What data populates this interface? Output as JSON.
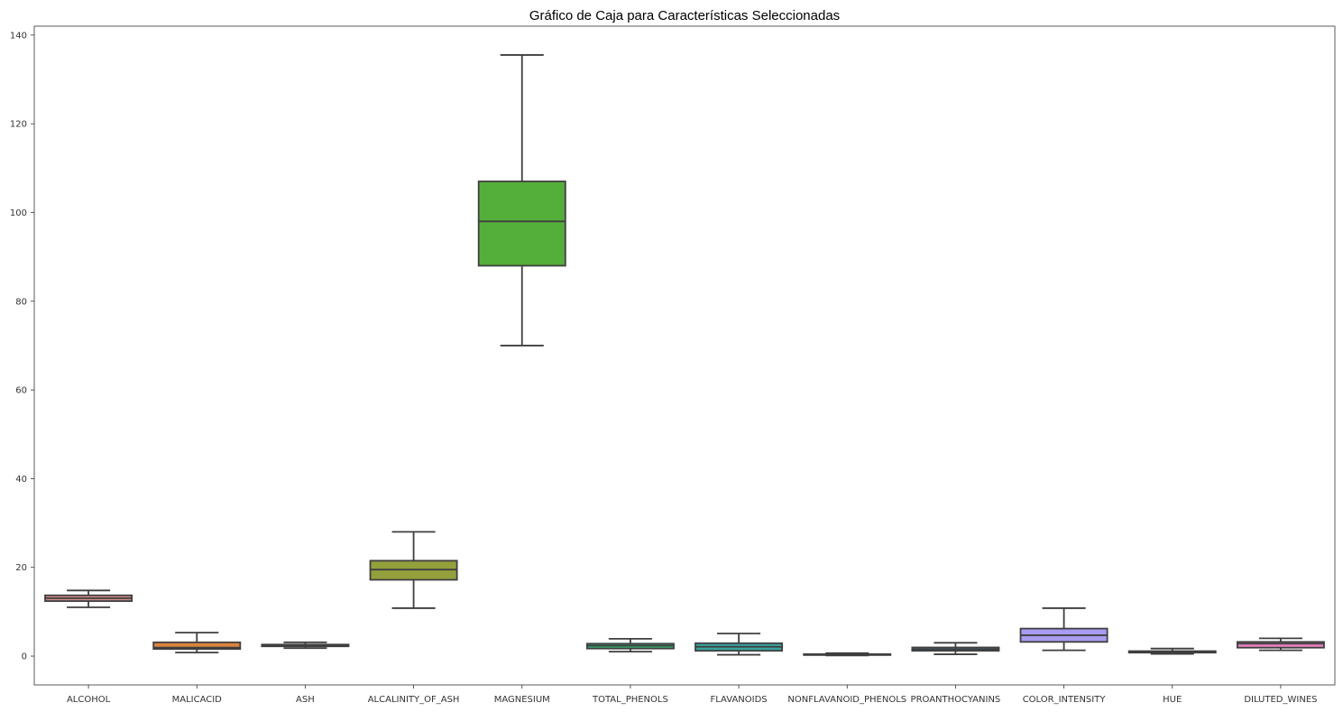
{
  "chart_data": {
    "type": "box",
    "title": "Gráfico de Caja para Características Seleccionadas",
    "xlabel": "",
    "ylabel": "",
    "ylim": [
      -6.5,
      142
    ],
    "yticks": [
      0,
      20,
      40,
      60,
      80,
      100,
      120,
      140
    ],
    "grid": false,
    "categories": [
      "ALCOHOL",
      "MALICACID",
      "ASH",
      "ALCALINITY_OF_ASH",
      "MAGNESIUM",
      "TOTAL_PHENOLS",
      "FLAVANOIDS",
      "NONFLAVANOID_PHENOLS",
      "PROANTHOCYANINS",
      "COLOR_INTENSITY",
      "HUE",
      "DILUTED_WINES"
    ],
    "series": [
      {
        "category": "ALCOHOL",
        "whisker_low": 11.0,
        "q1": 12.4,
        "median": 13.05,
        "q3": 13.7,
        "whisker_high": 14.8,
        "color": "#d48b8b"
      },
      {
        "category": "MALICACID",
        "whisker_low": 0.8,
        "q1": 1.6,
        "median": 1.9,
        "q3": 3.1,
        "whisker_high": 5.3,
        "color": "#d9843f"
      },
      {
        "category": "ASH",
        "whisker_low": 1.8,
        "q1": 2.2,
        "median": 2.4,
        "q3": 2.6,
        "whisker_high": 3.1,
        "color": "#a7a73a"
      },
      {
        "category": "ALCALINITY_OF_ASH",
        "whisker_low": 10.8,
        "q1": 17.2,
        "median": 19.5,
        "q3": 21.5,
        "whisker_high": 28.0,
        "color": "#93a03c"
      },
      {
        "category": "MAGNESIUM",
        "whisker_low": 70.0,
        "q1": 88.0,
        "median": 98.0,
        "q3": 107.0,
        "whisker_high": 135.5,
        "color": "#54ae3a"
      },
      {
        "category": "TOTAL_PHENOLS",
        "whisker_low": 1.0,
        "q1": 1.7,
        "median": 2.35,
        "q3": 2.8,
        "whisker_high": 3.9,
        "color": "#3aa874"
      },
      {
        "category": "FLAVANOIDS",
        "whisker_low": 0.3,
        "q1": 1.2,
        "median": 2.1,
        "q3": 2.9,
        "whisker_high": 5.1,
        "color": "#38a29e"
      },
      {
        "category": "NONFLAVANOID_PHENOLS",
        "whisker_low": 0.13,
        "q1": 0.27,
        "median": 0.34,
        "q3": 0.44,
        "whisker_high": 0.66,
        "color": "#3ba3c4"
      },
      {
        "category": "PROANTHOCYANINS",
        "whisker_low": 0.4,
        "q1": 1.2,
        "median": 1.55,
        "q3": 1.95,
        "whisker_high": 3.0,
        "color": "#5fa4dc"
      },
      {
        "category": "COLOR_INTENSITY",
        "whisker_low": 1.3,
        "q1": 3.2,
        "median": 4.7,
        "q3": 6.2,
        "whisker_high": 10.8,
        "color": "#a99bf0"
      },
      {
        "category": "HUE",
        "whisker_low": 0.5,
        "q1": 0.78,
        "median": 0.96,
        "q3": 1.12,
        "whisker_high": 1.7,
        "color": "#cf85de"
      },
      {
        "category": "DILUTED_WINES",
        "whisker_low": 1.3,
        "q1": 1.9,
        "median": 2.8,
        "q3": 3.2,
        "whisker_high": 4.0,
        "color": "#e680bd"
      }
    ]
  }
}
